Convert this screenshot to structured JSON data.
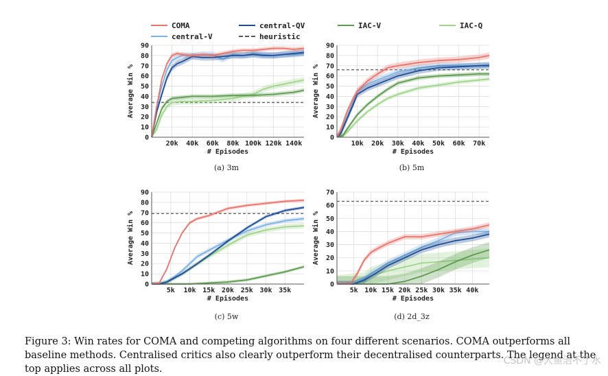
{
  "legend": [
    {
      "label": "COMA",
      "color": "#e8746a",
      "style": "solid"
    },
    {
      "label": "central-V",
      "color": "#7fb1e1",
      "style": "solid"
    },
    {
      "label": "central-QV",
      "color": "#1f4e96",
      "style": "solid"
    },
    {
      "label": "heuristic",
      "color": "#666666",
      "style": "dashed"
    },
    {
      "label": "IAC-V",
      "color": "#5e9a4e",
      "style": "solid"
    },
    {
      "label": "IAC-Q",
      "color": "#9fd48a",
      "style": "solid"
    }
  ],
  "chart_data": [
    {
      "type": "line",
      "id": "3m",
      "caption": "(a) 3m",
      "xlabel": "# Episodes",
      "ylabel": "Average Win %",
      "xlim": [
        0,
        150000
      ],
      "ylim": [
        0,
        90
      ],
      "xticks": [
        20000,
        40000,
        60000,
        80000,
        100000,
        120000,
        140000
      ],
      "xtick_labels": [
        "20k",
        "40k",
        "60k",
        "80k",
        "100k",
        "120k",
        "140k"
      ],
      "yticks": [
        0,
        10,
        20,
        30,
        40,
        50,
        60,
        70,
        80,
        90
      ],
      "heuristic": 34,
      "series": [
        {
          "name": "COMA",
          "x": [
            0,
            5000,
            10000,
            15000,
            20000,
            25000,
            30000,
            40000,
            50000,
            60000,
            70000,
            80000,
            90000,
            100000,
            110000,
            120000,
            130000,
            140000,
            150000
          ],
          "values": [
            0,
            30,
            57,
            72,
            80,
            82,
            81,
            80,
            81,
            80,
            82,
            84,
            85,
            85,
            86,
            87,
            87,
            86,
            87
          ],
          "band": 2
        },
        {
          "name": "central-V",
          "x": [
            0,
            5000,
            10000,
            15000,
            20000,
            25000,
            30000,
            40000,
            50000,
            60000,
            70000,
            80000,
            90000,
            100000,
            110000,
            120000,
            130000,
            140000,
            150000
          ],
          "values": [
            0,
            30,
            50,
            66,
            75,
            78,
            80,
            80,
            81,
            81,
            76,
            81,
            80,
            82,
            81,
            80,
            81,
            81,
            82
          ],
          "band": 3
        },
        {
          "name": "central-QV",
          "x": [
            0,
            5000,
            10000,
            15000,
            20000,
            25000,
            30000,
            40000,
            50000,
            60000,
            70000,
            80000,
            90000,
            100000,
            110000,
            120000,
            130000,
            140000,
            150000
          ],
          "values": [
            0,
            25,
            42,
            58,
            68,
            72,
            74,
            79,
            78,
            78,
            79,
            80,
            80,
            81,
            80,
            80,
            81,
            82,
            83
          ],
          "band": 3
        },
        {
          "name": "IAC-V",
          "x": [
            0,
            5000,
            10000,
            15000,
            20000,
            30000,
            40000,
            60000,
            80000,
            100000,
            120000,
            140000,
            150000
          ],
          "values": [
            0,
            14,
            28,
            35,
            38,
            39,
            40,
            40,
            41,
            41,
            42,
            44,
            46
          ],
          "band": 2
        },
        {
          "name": "IAC-Q",
          "x": [
            0,
            5000,
            10000,
            15000,
            20000,
            30000,
            40000,
            60000,
            80000,
            100000,
            110000,
            120000,
            130000,
            140000,
            150000
          ],
          "values": [
            0,
            8,
            22,
            30,
            34,
            35,
            35,
            36,
            38,
            42,
            47,
            50,
            52,
            54,
            56
          ],
          "band": 3
        }
      ]
    },
    {
      "type": "line",
      "id": "5m",
      "caption": "(b) 5m",
      "xlabel": "# Episodes",
      "ylabel": "Average Win %",
      "xlim": [
        0,
        75000
      ],
      "ylim": [
        0,
        90
      ],
      "xticks": [
        10000,
        20000,
        30000,
        40000,
        50000,
        60000,
        70000
      ],
      "xtick_labels": [
        "10k",
        "20k",
        "30k",
        "40k",
        "50k",
        "60k",
        "70k"
      ],
      "yticks": [
        0,
        10,
        20,
        30,
        40,
        50,
        60,
        70,
        80,
        90
      ],
      "heuristic": 66,
      "series": [
        {
          "name": "COMA",
          "x": [
            0,
            2000,
            5000,
            8000,
            10000,
            15000,
            20000,
            25000,
            30000,
            40000,
            50000,
            60000,
            70000,
            75000
          ],
          "values": [
            0,
            8,
            25,
            38,
            45,
            55,
            62,
            68,
            70,
            73,
            75,
            76,
            78,
            80
          ],
          "band": 3
        },
        {
          "name": "central-V",
          "x": [
            0,
            2000,
            5000,
            8000,
            10000,
            15000,
            20000,
            25000,
            30000,
            40000,
            50000,
            60000,
            70000,
            75000
          ],
          "values": [
            0,
            6,
            20,
            35,
            45,
            52,
            56,
            60,
            64,
            68,
            70,
            70,
            70,
            71
          ],
          "band": 3
        },
        {
          "name": "central-QV",
          "x": [
            0,
            2000,
            5000,
            8000,
            10000,
            15000,
            20000,
            25000,
            30000,
            40000,
            50000,
            60000,
            70000,
            75000
          ],
          "values": [
            0,
            4,
            18,
            32,
            42,
            48,
            52,
            56,
            60,
            65,
            68,
            69,
            70,
            70
          ],
          "band": 3
        },
        {
          "name": "IAC-V",
          "x": [
            0,
            3000,
            5000,
            10000,
            15000,
            20000,
            25000,
            30000,
            40000,
            50000,
            60000,
            70000,
            75000
          ],
          "values": [
            0,
            2,
            8,
            22,
            32,
            40,
            47,
            53,
            58,
            60,
            61,
            62,
            62
          ],
          "band": 2
        },
        {
          "name": "IAC-Q",
          "x": [
            0,
            3000,
            5000,
            10000,
            15000,
            20000,
            25000,
            30000,
            40000,
            50000,
            60000,
            70000,
            75000
          ],
          "values": [
            0,
            1,
            5,
            16,
            25,
            32,
            38,
            42,
            48,
            51,
            54,
            56,
            57
          ],
          "band": 2
        }
      ]
    },
    {
      "type": "line",
      "id": "5w",
      "caption": "(c) 5w",
      "xlabel": "# Episodes",
      "ylabel": "Average Win %",
      "xlim": [
        0,
        40000
      ],
      "ylim": [
        0,
        90
      ],
      "xticks": [
        5000,
        10000,
        15000,
        20000,
        25000,
        30000,
        35000
      ],
      "xtick_labels": [
        "5k",
        "10k",
        "15k",
        "20k",
        "25k",
        "30k",
        "35k"
      ],
      "yticks": [
        0,
        10,
        20,
        30,
        40,
        50,
        60,
        70,
        80,
        90
      ],
      "heuristic": 69,
      "series": [
        {
          "name": "COMA",
          "x": [
            0,
            2000,
            4000,
            6000,
            8000,
            10000,
            12000,
            15000,
            20000,
            25000,
            30000,
            35000,
            40000
          ],
          "values": [
            0,
            1,
            15,
            35,
            50,
            60,
            64,
            67,
            74,
            77,
            79,
            81,
            82
          ],
          "band": 1.5
        },
        {
          "name": "central-V",
          "x": [
            0,
            2000,
            4000,
            6000,
            8000,
            10000,
            12000,
            15000,
            20000,
            25000,
            30000,
            35000,
            40000
          ],
          "values": [
            0,
            0,
            2,
            7,
            13,
            20,
            27,
            33,
            43,
            52,
            58,
            62,
            64
          ],
          "band": 2
        },
        {
          "name": "central-QV",
          "x": [
            0,
            2000,
            4000,
            6000,
            8000,
            10000,
            12000,
            15000,
            20000,
            25000,
            30000,
            35000,
            40000
          ],
          "values": [
            0,
            0,
            2,
            6,
            10,
            15,
            20,
            28,
            42,
            55,
            66,
            72,
            75
          ],
          "band": 1.5
        },
        {
          "name": "IAC-V",
          "x": [
            0,
            5000,
            10000,
            15000,
            20000,
            25000,
            30000,
            35000,
            40000
          ],
          "values": [
            0,
            0,
            0,
            1,
            2,
            4,
            8,
            12,
            17
          ],
          "band": 1.5
        },
        {
          "name": "IAC-Q",
          "x": [
            0,
            2000,
            4000,
            6000,
            8000,
            10000,
            12000,
            15000,
            20000,
            25000,
            30000,
            35000,
            40000
          ],
          "values": [
            0,
            0,
            2,
            6,
            10,
            15,
            20,
            27,
            38,
            48,
            53,
            56,
            57
          ],
          "band": 2.5
        }
      ]
    },
    {
      "type": "line",
      "id": "2d_3z",
      "caption": "(d) 2d_3z",
      "xlabel": "# Episodes",
      "ylabel": "Average Win %",
      "xlim": [
        0,
        45000
      ],
      "ylim": [
        0,
        70
      ],
      "xticks": [
        5000,
        10000,
        15000,
        20000,
        25000,
        30000,
        35000,
        40000
      ],
      "xtick_labels": [
        "5k",
        "10k",
        "15k",
        "20k",
        "25k",
        "30k",
        "35k",
        "40k"
      ],
      "yticks": [
        0,
        10,
        20,
        30,
        40,
        50,
        60,
        70
      ],
      "heuristic": 63,
      "series": [
        {
          "name": "COMA",
          "x": [
            0,
            4000,
            6000,
            8000,
            10000,
            12000,
            15000,
            18000,
            20000,
            25000,
            30000,
            35000,
            40000,
            45000
          ],
          "values": [
            0,
            0,
            8,
            18,
            24,
            27,
            31,
            34,
            36,
            36,
            38,
            40,
            42,
            45
          ],
          "band": 2
        },
        {
          "name": "central-V",
          "x": [
            0,
            5000,
            8000,
            10000,
            12000,
            15000,
            20000,
            25000,
            30000,
            35000,
            40000,
            45000
          ],
          "values": [
            0,
            0,
            4,
            8,
            11,
            16,
            22,
            28,
            33,
            39,
            40,
            40
          ],
          "band": 2.5
        },
        {
          "name": "central-QV",
          "x": [
            0,
            5000,
            8000,
            10000,
            12000,
            15000,
            20000,
            25000,
            30000,
            35000,
            40000,
            45000
          ],
          "values": [
            0,
            0,
            3,
            6,
            9,
            14,
            20,
            26,
            30,
            33,
            35,
            38
          ],
          "band": 2.5
        },
        {
          "name": "IAC-V",
          "x": [
            0,
            10000,
            15000,
            20000,
            25000,
            30000,
            35000,
            40000,
            45000
          ],
          "values": [
            0,
            0,
            0,
            2,
            6,
            11,
            17,
            22,
            26
          ],
          "band": 6
        },
        {
          "name": "IAC-Q",
          "x": [
            0,
            8000,
            10000,
            15000,
            20000,
            25000,
            30000,
            35000,
            40000,
            45000
          ],
          "values": [
            0,
            2,
            6,
            10,
            13,
            16,
            17,
            18,
            19,
            20
          ],
          "band": 7
        }
      ]
    }
  ],
  "caption": "Figure 3: Win rates for COMA and competing algorithms on four different scenarios. COMA outperforms all baseline methods. Centralised critics also clearly outperform their decentralised counterparts. The legend at the top applies across all plots.",
  "watermark": "CSDN @大鱼治不了水"
}
